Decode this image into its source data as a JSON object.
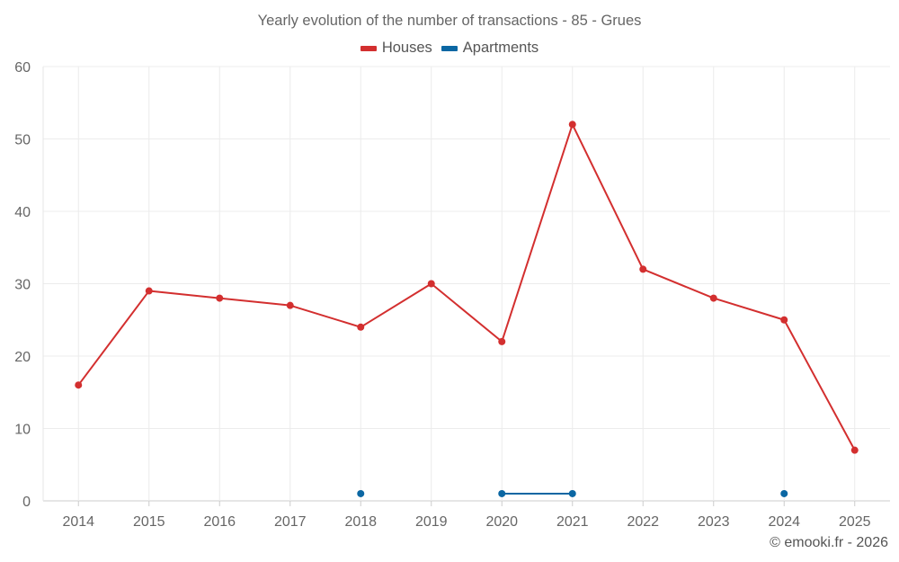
{
  "chart_data": {
    "type": "line",
    "title": "Yearly evolution of the number of transactions - 85 - Grues",
    "categories": [
      "2014",
      "2015",
      "2016",
      "2017",
      "2018",
      "2019",
      "2020",
      "2021",
      "2022",
      "2023",
      "2024",
      "2025"
    ],
    "series": [
      {
        "name": "Houses",
        "color": "#d32f2f",
        "values": [
          16,
          29,
          28,
          27,
          24,
          30,
          22,
          52,
          32,
          28,
          25,
          7
        ]
      },
      {
        "name": "Apartments",
        "color": "#0b67a3",
        "values": [
          null,
          null,
          null,
          null,
          1,
          null,
          1,
          1,
          null,
          null,
          1,
          null
        ]
      }
    ],
    "ylim": [
      0,
      60
    ],
    "yticks": [
      0,
      10,
      20,
      30,
      40,
      50,
      60
    ],
    "xlabel": "",
    "ylabel": "",
    "grid": true,
    "legend": "top-center"
  },
  "credit": "© emooki.fr - 2026"
}
